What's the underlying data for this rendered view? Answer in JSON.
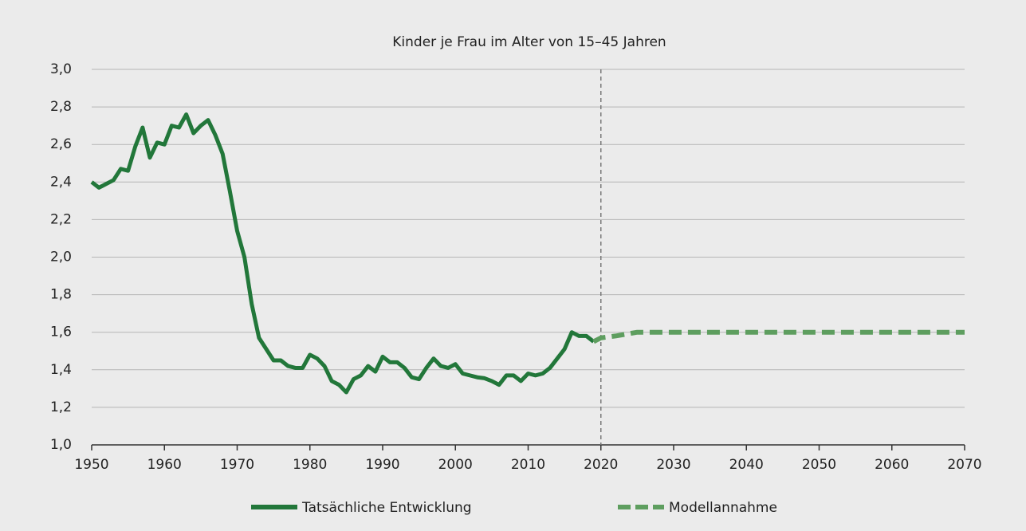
{
  "chart_data": {
    "type": "line",
    "title": "Kinder je Frau im Alter von 15–45 Jahren",
    "xlim": [
      1950,
      2070
    ],
    "xticks": [
      1950,
      1960,
      1970,
      1980,
      1990,
      2000,
      2010,
      2020,
      2030,
      2040,
      2050,
      2060,
      2070
    ],
    "ylim": [
      1.0,
      3.0
    ],
    "yticks": [
      {
        "value": 1.0,
        "label": "1,0"
      },
      {
        "value": 1.2,
        "label": "1,2"
      },
      {
        "value": 1.4,
        "label": "1,4"
      },
      {
        "value": 1.6,
        "label": "1,6"
      },
      {
        "value": 1.8,
        "label": "1,8"
      },
      {
        "value": 2.0,
        "label": "2,0"
      },
      {
        "value": 2.2,
        "label": "2,2"
      },
      {
        "value": 2.4,
        "label": "2,4"
      },
      {
        "value": 2.6,
        "label": "2,6"
      },
      {
        "value": 2.8,
        "label": "2,8"
      },
      {
        "value": 3.0,
        "label": "3,0"
      }
    ],
    "grid": true,
    "vline": 2020,
    "legend": "bottom",
    "series": [
      {
        "name": "Tatsächliche Entwicklung",
        "color": "#22773a",
        "dashed": false,
        "x": [
          1950,
          1951,
          1952,
          1953,
          1954,
          1955,
          1956,
          1957,
          1958,
          1959,
          1960,
          1961,
          1962,
          1963,
          1964,
          1965,
          1966,
          1967,
          1968,
          1969,
          1970,
          1971,
          1972,
          1973,
          1974,
          1975,
          1976,
          1977,
          1978,
          1979,
          1980,
          1981,
          1982,
          1983,
          1984,
          1985,
          1986,
          1987,
          1988,
          1989,
          1990,
          1991,
          1992,
          1993,
          1994,
          1995,
          1996,
          1997,
          1998,
          1999,
          2000,
          2001,
          2002,
          2003,
          2004,
          2005,
          2006,
          2007,
          2008,
          2009,
          2010,
          2011,
          2012,
          2013,
          2014,
          2015,
          2016,
          2017,
          2018,
          2019
        ],
        "values": [
          2.4,
          2.37,
          2.39,
          2.41,
          2.47,
          2.46,
          2.59,
          2.69,
          2.53,
          2.61,
          2.6,
          2.7,
          2.69,
          2.76,
          2.66,
          2.7,
          2.73,
          2.65,
          2.55,
          2.35,
          2.14,
          2.0,
          1.75,
          1.57,
          1.51,
          1.45,
          1.45,
          1.42,
          1.41,
          1.41,
          1.48,
          1.46,
          1.42,
          1.34,
          1.32,
          1.28,
          1.35,
          1.37,
          1.42,
          1.39,
          1.47,
          1.44,
          1.44,
          1.41,
          1.36,
          1.35,
          1.41,
          1.46,
          1.42,
          1.41,
          1.43,
          1.38,
          1.37,
          1.36,
          1.355,
          1.34,
          1.32,
          1.37,
          1.37,
          1.34,
          1.38,
          1.37,
          1.38,
          1.41,
          1.46,
          1.51,
          1.6,
          1.58,
          1.58,
          1.55
        ]
      },
      {
        "name": "Modellannahme",
        "color": "#5e9e5f",
        "dashed": true,
        "x": [
          2019,
          2020,
          2022,
          2025,
          2030,
          2040,
          2050,
          2060,
          2070
        ],
        "values": [
          1.55,
          1.57,
          1.58,
          1.6,
          1.6,
          1.6,
          1.6,
          1.6,
          1.6
        ]
      }
    ]
  }
}
